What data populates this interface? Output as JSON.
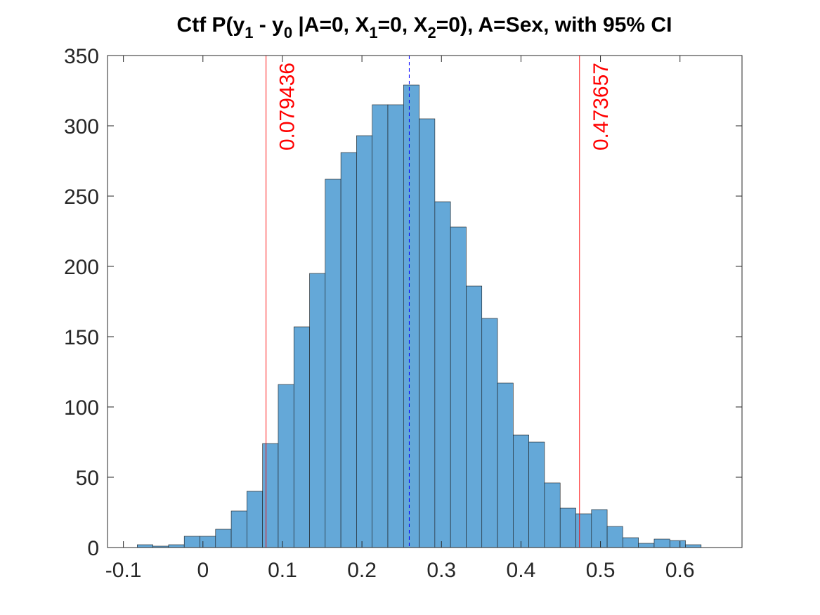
{
  "chart_data": {
    "type": "bar",
    "title": {
      "prefix": "Ctf P(y",
      "sub1": "1",
      "mid1": " - y",
      "sub2": "0",
      "mid2": " |A=0, X",
      "sub3": "1",
      "mid3": "=0, X",
      "sub4": "2",
      "suffix": "=0), A=Sex, with 95% CI"
    },
    "xlabel": "",
    "ylabel": "",
    "xlim": [
      -0.12,
      0.678
    ],
    "ylim": [
      0,
      350
    ],
    "x_ticks": [
      -0.1,
      0,
      0.1,
      0.2,
      0.3,
      0.4,
      0.5,
      0.6
    ],
    "x_tick_labels": [
      "-0.1",
      "0",
      "0.1",
      "0.2",
      "0.3",
      "0.4",
      "0.5",
      "0.6"
    ],
    "y_ticks": [
      0,
      50,
      100,
      150,
      200,
      250,
      300,
      350
    ],
    "y_tick_labels": [
      "0",
      "50",
      "100",
      "150",
      "200",
      "250",
      "300",
      "350"
    ],
    "bin_start": -0.0826,
    "bin_width": 0.0197,
    "values": [
      2,
      1,
      2,
      8,
      8,
      13,
      26,
      40,
      74,
      116,
      157,
      195,
      262,
      281,
      293,
      315,
      315,
      329,
      305,
      246,
      228,
      186,
      163,
      117,
      80,
      75,
      46,
      28,
      24,
      27,
      15,
      7,
      3,
      6,
      5,
      2
    ],
    "bar_color": "#64a8d8",
    "bar_edge_color": "#1a1a1a",
    "ci_lower": {
      "value": 0.079436,
      "label": "0.079436"
    },
    "ci_upper": {
      "value": 0.473657,
      "label": "0.473657"
    },
    "ci_color": "#ff0000",
    "mean_line": {
      "value": 0.2595,
      "color": "#0000ff",
      "style": "dashed"
    },
    "grid": false,
    "legend": "none"
  }
}
